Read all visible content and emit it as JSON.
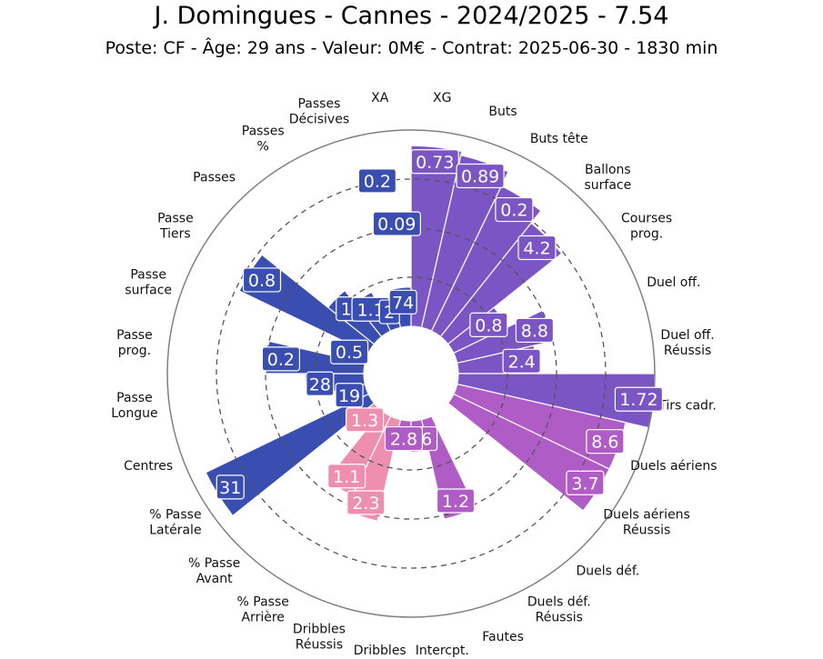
{
  "header": {
    "title": "J. Domingues - Cannes - 2024/2025 - 7.54",
    "subtitle": "Poste: CF - Âge: 29 ans - Valeur: 0M€ - Contrat: 2025-06-30 - 1830 min"
  },
  "colors": {
    "attack": "#7B55C4",
    "defense": "#B05CC6",
    "possession": "#3A4DB0",
    "pink": "#EE8FB0",
    "outline": "#808080",
    "grid": "#555555"
  },
  "chart_data": {
    "type": "polar-bar",
    "max_value": 100,
    "grid": true,
    "metrics": [
      {
        "label": "XG",
        "value_label": "0.73",
        "percentile": 92,
        "group": "attack"
      },
      {
        "label": "Buts",
        "value_label": "0.89",
        "percentile": 90,
        "group": "attack"
      },
      {
        "label": "Buts tête",
        "value_label": "0.2",
        "percentile": 82,
        "group": "attack"
      },
      {
        "label": "Ballons\nsurface",
        "value_label": "4.2",
        "percentile": 74,
        "group": "attack"
      },
      {
        "label": "Courses\nprog.",
        "value_label": "0.8",
        "percentile": 30,
        "group": "attack"
      },
      {
        "label": "Duel off.",
        "value_label": "8.8",
        "percentile": 50,
        "group": "attack"
      },
      {
        "label": "Duel off.\nRéussis",
        "value_label": "2.4",
        "percentile": 40,
        "group": "attack"
      },
      {
        "label": "Tirs cadr.",
        "value_label": "1.72",
        "percentile": 100,
        "group": "attack"
      },
      {
        "label": "Duels aériens",
        "value_label": "8.6",
        "percentile": 88,
        "group": "defense"
      },
      {
        "label": "Duels aériens\nRéussis",
        "value_label": "3.7",
        "percentile": 88,
        "group": "defense"
      },
      {
        "label": "Duels déf.",
        "value_label": "",
        "percentile": 0,
        "group": "defense"
      },
      {
        "label": "Duels déf.\nRéussis",
        "value_label": "",
        "percentile": 0,
        "group": "defense"
      },
      {
        "label": "Fautes",
        "value_label": "1.2",
        "percentile": 52,
        "group": "defense"
      },
      {
        "label": "Intercpt.",
        "value_label": "1.6",
        "percentile": 16,
        "group": "defense"
      },
      {
        "label": "Dribbles",
        "value_label": "2.8",
        "percentile": 10,
        "group": "defense"
      },
      {
        "label": "Dribbles\nRéussis",
        "value_label": "2.3",
        "percentile": 53,
        "group": "pink"
      },
      {
        "label": "% Passe\nArrière",
        "value_label": "1.1",
        "percentile": 45,
        "group": "pink"
      },
      {
        "label": "% Passe\nAvant",
        "value_label": "1.3",
        "percentile": 12,
        "group": "pink"
      },
      {
        "label": "% Passe\nLatérale",
        "value_label": "31",
        "percentile": 92,
        "group": "possession"
      },
      {
        "label": "Centres",
        "value_label": "19",
        "percentile": 12,
        "group": "possession"
      },
      {
        "label": "Passe\nLongue",
        "value_label": "28",
        "percentile": 30,
        "group": "possession"
      },
      {
        "label": "Passe\nprog.",
        "value_label": "0.2",
        "percentile": 50,
        "group": "possession"
      },
      {
        "label": "Passe\nsurface",
        "value_label": "0.5",
        "percentile": 15,
        "group": "possession"
      },
      {
        "label": "Passe\nTiers",
        "value_label": "0.8",
        "percentile": 73,
        "group": "possession"
      },
      {
        "label": "Passes",
        "value_label": "1",
        "percentile": 30,
        "group": "possession"
      },
      {
        "label": "Passes\n%",
        "value_label": "1.1",
        "percentile": 22,
        "group": "possession"
      },
      {
        "label": "Passes\nDécisives",
        "value_label": "2",
        "percentile": 15,
        "group": "possession"
      },
      {
        "label": "XA",
        "value_label": "74",
        "percentile": 20,
        "group": "possession"
      }
    ],
    "extra_labels": [
      {
        "value_label": "0.2",
        "percentile": 83,
        "group": "possession"
      },
      {
        "value_label": "0.09",
        "percentile": 60,
        "group": "possession"
      }
    ]
  }
}
